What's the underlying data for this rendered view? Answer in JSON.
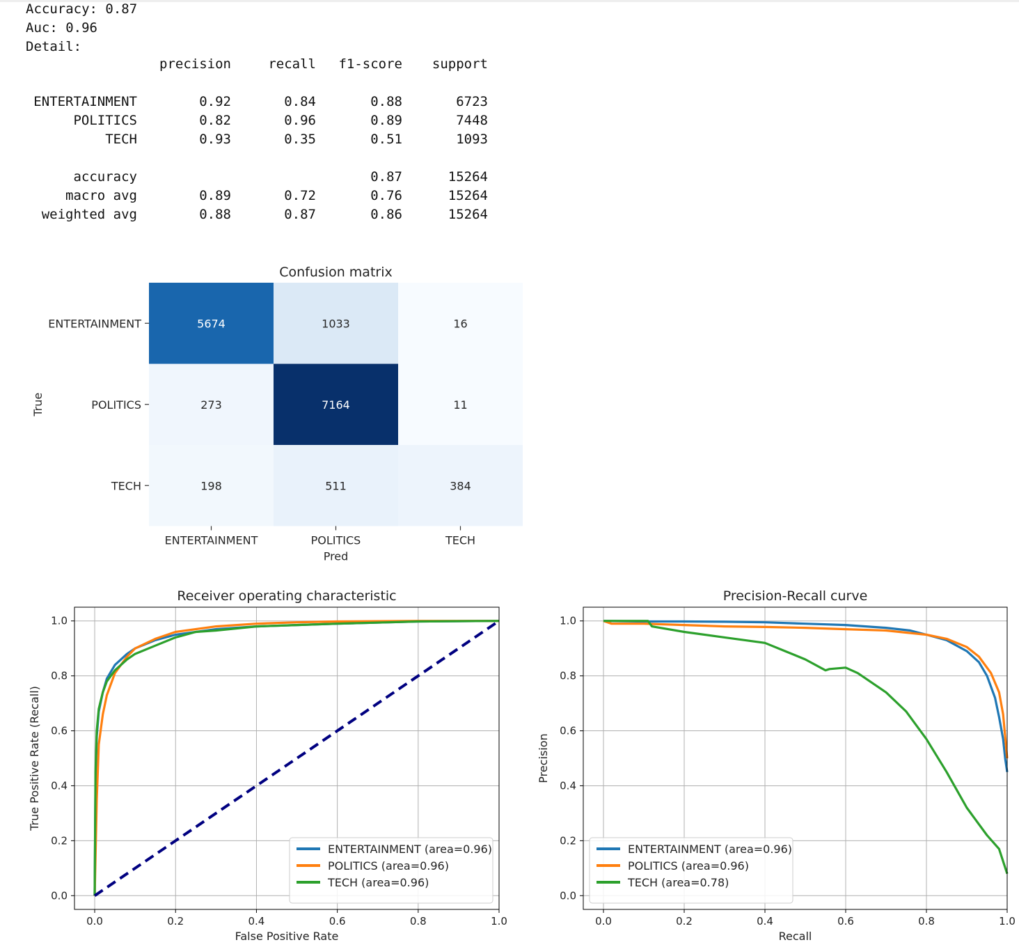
{
  "summary": {
    "accuracy_line": "Accuracy: 0.87",
    "auc_line": "Auc: 0.96",
    "detail_line": "Detail:"
  },
  "report": {
    "headers": [
      "precision",
      "recall",
      "f1-score",
      "support"
    ],
    "class_rows": [
      {
        "label": "ENTERTAINMENT",
        "precision": "0.92",
        "recall": "0.84",
        "f1": "0.88",
        "support": "6723"
      },
      {
        "label": "POLITICS",
        "precision": "0.82",
        "recall": "0.96",
        "f1": "0.89",
        "support": "7448"
      },
      {
        "label": "TECH",
        "precision": "0.93",
        "recall": "0.35",
        "f1": "0.51",
        "support": "1093"
      }
    ],
    "summary_rows": [
      {
        "label": "accuracy",
        "precision": "",
        "recall": "",
        "f1": "0.87",
        "support": "15264"
      },
      {
        "label": "macro avg",
        "precision": "0.89",
        "recall": "0.72",
        "f1": "0.76",
        "support": "15264"
      },
      {
        "label": "weighted avg",
        "precision": "0.88",
        "recall": "0.87",
        "f1": "0.86",
        "support": "15264"
      }
    ]
  },
  "chart_data": [
    {
      "type": "heatmap",
      "title": "Confusion matrix",
      "xlabel": "Pred",
      "ylabel": "True",
      "x_categories": [
        "ENTERTAINMENT",
        "POLITICS",
        "TECH"
      ],
      "y_categories": [
        "ENTERTAINMENT",
        "POLITICS",
        "TECH"
      ],
      "values": [
        [
          5674,
          1033,
          16
        ],
        [
          273,
          7164,
          11
        ],
        [
          198,
          511,
          384
        ]
      ],
      "colormap": "Blues",
      "color_low": "#f7fbff",
      "color_high": "#08306b"
    },
    {
      "type": "line",
      "title": "Receiver operating characteristic",
      "xlabel": "False Positive Rate",
      "ylabel": "True Positive Rate (Recall)",
      "xlim": [
        0,
        1
      ],
      "ylim": [
        0,
        1
      ],
      "xticks": [
        "0.0",
        "0.2",
        "0.4",
        "0.6",
        "0.8",
        "1.0"
      ],
      "yticks": [
        "0.0",
        "0.2",
        "0.4",
        "0.6",
        "0.8",
        "1.0"
      ],
      "grid": true,
      "legend_position": "lower right",
      "series": [
        {
          "name": "ENTERTAINMENT (area=0.96)",
          "color": "#1f77b4",
          "x": [
            0,
            0.002,
            0.005,
            0.01,
            0.02,
            0.03,
            0.05,
            0.08,
            0.1,
            0.15,
            0.2,
            0.3,
            0.4,
            0.5,
            0.6,
            0.8,
            1.0
          ],
          "y": [
            0,
            0.4,
            0.58,
            0.67,
            0.74,
            0.79,
            0.84,
            0.88,
            0.9,
            0.93,
            0.95,
            0.97,
            0.98,
            0.985,
            0.99,
            0.998,
            1.0
          ]
        },
        {
          "name": "POLITICS (area=0.96)",
          "color": "#ff7f0e",
          "x": [
            0,
            0.005,
            0.01,
            0.02,
            0.03,
            0.05,
            0.08,
            0.1,
            0.15,
            0.2,
            0.3,
            0.4,
            0.5,
            0.6,
            0.8,
            1.0
          ],
          "y": [
            0,
            0.35,
            0.55,
            0.66,
            0.73,
            0.81,
            0.87,
            0.9,
            0.935,
            0.96,
            0.98,
            0.99,
            0.995,
            0.998,
            1.0,
            1.0
          ]
        },
        {
          "name": "TECH (area=0.96)",
          "color": "#2ca02c",
          "x": [
            0,
            0.002,
            0.005,
            0.01,
            0.02,
            0.03,
            0.05,
            0.08,
            0.1,
            0.15,
            0.2,
            0.25,
            0.3,
            0.4,
            0.5,
            0.6,
            0.8,
            1.0
          ],
          "y": [
            0,
            0.45,
            0.6,
            0.68,
            0.74,
            0.78,
            0.82,
            0.86,
            0.88,
            0.91,
            0.94,
            0.96,
            0.965,
            0.98,
            0.985,
            0.99,
            0.998,
            1.0
          ]
        },
        {
          "name": "",
          "color": "#000080",
          "dashed": true,
          "x": [
            0,
            1
          ],
          "y": [
            0,
            1
          ]
        }
      ]
    },
    {
      "type": "line",
      "title": "Precision-Recall curve",
      "xlabel": "Recall",
      "ylabel": "Precision",
      "xlim": [
        0,
        1
      ],
      "ylim": [
        0,
        1
      ],
      "xticks": [
        "0.0",
        "0.2",
        "0.4",
        "0.6",
        "0.8",
        "1.0"
      ],
      "yticks": [
        "0.0",
        "0.2",
        "0.4",
        "0.6",
        "0.8",
        "1.0"
      ],
      "grid": true,
      "legend_position": "lower left",
      "series": [
        {
          "name": "ENTERTAINMENT (area=0.96)",
          "color": "#1f77b4",
          "x": [
            0,
            0.1,
            0.2,
            0.3,
            0.4,
            0.5,
            0.6,
            0.7,
            0.76,
            0.8,
            0.85,
            0.9,
            0.93,
            0.95,
            0.97,
            0.98,
            0.99,
            0.995,
            1.0
          ],
          "y": [
            1.0,
            0.998,
            0.998,
            0.997,
            0.995,
            0.99,
            0.985,
            0.975,
            0.965,
            0.95,
            0.93,
            0.89,
            0.85,
            0.8,
            0.72,
            0.65,
            0.57,
            0.5,
            0.45
          ]
        },
        {
          "name": "POLITICS (area=0.96)",
          "color": "#ff7f0e",
          "x": [
            0,
            0.02,
            0.1,
            0.2,
            0.3,
            0.4,
            0.5,
            0.6,
            0.7,
            0.8,
            0.85,
            0.9,
            0.93,
            0.96,
            0.98,
            0.99,
            0.995,
            1.0
          ],
          "y": [
            1.0,
            0.99,
            0.99,
            0.985,
            0.98,
            0.978,
            0.975,
            0.97,
            0.965,
            0.95,
            0.935,
            0.905,
            0.87,
            0.81,
            0.74,
            0.66,
            0.58,
            0.5
          ]
        },
        {
          "name": "TECH (area=0.78)",
          "color": "#2ca02c",
          "x": [
            0,
            0.05,
            0.11,
            0.12,
            0.2,
            0.3,
            0.4,
            0.45,
            0.5,
            0.55,
            0.56,
            0.6,
            0.63,
            0.65,
            0.7,
            0.75,
            0.8,
            0.85,
            0.9,
            0.95,
            0.98,
            1.0
          ],
          "y": [
            1.0,
            1.0,
            1.0,
            0.98,
            0.96,
            0.94,
            0.92,
            0.89,
            0.86,
            0.82,
            0.825,
            0.83,
            0.81,
            0.79,
            0.74,
            0.67,
            0.57,
            0.45,
            0.32,
            0.22,
            0.17,
            0.08
          ]
        }
      ]
    }
  ]
}
